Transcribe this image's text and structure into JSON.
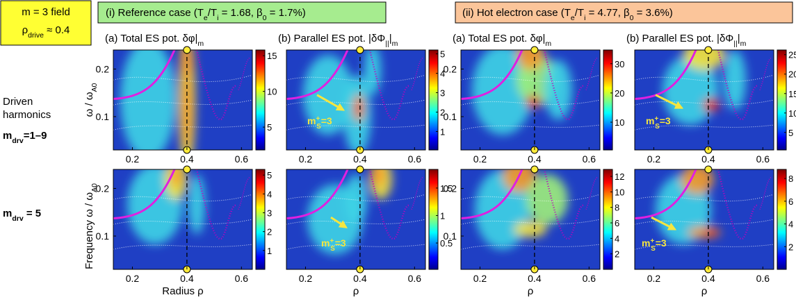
{
  "header": {
    "field_box": [
      [
        "m = 3 field"
      ],
      [
        "ρ",
        "drive",
        " ≈ 0.4"
      ]
    ],
    "case_ref": [
      "(i) Reference case (T",
      "e",
      "/T",
      "i",
      " = 1.68, β",
      "0",
      " = 1.7%)"
    ],
    "case_hot": [
      "(ii) Hot electron case (T",
      "e",
      "/T",
      "i",
      " = 4.77, β",
      "0",
      " = 3.6%)"
    ],
    "driven": [
      "Driven",
      "harmonics"
    ],
    "row_labels": [
      [
        "m",
        "drv",
        "=1–9"
      ],
      [
        "m",
        "drv",
        " = 5"
      ]
    ]
  },
  "chart_data": [
    {
      "type": "heatmap",
      "title": [
        "(a) Total ES pot. δφ|",
        "m"
      ],
      "ylabel": [
        "ω / ω",
        "A0"
      ],
      "xlim": [
        0.13,
        0.64
      ],
      "ylim": [
        0.03,
        0.24
      ],
      "xticks": [
        0.2,
        0.4,
        0.6
      ],
      "yticks": [
        0.1,
        0.2
      ],
      "colorbar": {
        "clim": [
          1.8,
          15.8
        ],
        "ticks": [
          5,
          10,
          15
        ]
      }
    },
    {
      "type": "heatmap",
      "title": [
        "(b) Parallel ES pot. |δΦ",
        "||",
        "|",
        "m"
      ],
      "xlim": [
        0.13,
        0.64
      ],
      "ylim": [
        0.03,
        0.24
      ],
      "xticks": [
        0.2,
        0.4,
        0.6
      ],
      "colorbar": {
        "clim": [
          0.05,
          5.2
        ],
        "ticks": [
          1,
          2,
          3,
          4,
          5
        ]
      },
      "annotation": {
        "base": "m",
        "sup": "+",
        "sub": "S",
        "rest": "=3"
      }
    },
    {
      "type": "heatmap",
      "title": [
        "(a) Total ES pot. δφ|",
        "m"
      ],
      "xlim": [
        0.13,
        0.64
      ],
      "ylim": [
        0.03,
        0.24
      ],
      "xticks": [
        0.2,
        0.4,
        0.6
      ],
      "yticks": [
        0.1,
        0.2
      ],
      "colorbar": {
        "clim": [
          0.5,
          34.7
        ],
        "ticks": [
          10,
          20,
          30
        ]
      }
    },
    {
      "type": "heatmap",
      "title": [
        "(b) Parallel ES pot. |δΦ",
        "||",
        "|",
        "m"
      ],
      "xlim": [
        0.13,
        0.64
      ],
      "ylim": [
        0.03,
        0.24
      ],
      "xticks": [
        0.2,
        0.4,
        0.6
      ],
      "colorbar": {
        "clim": [
          0.5,
          26.2
        ],
        "ticks": [
          5,
          10,
          15,
          20,
          25
        ]
      },
      "annotation": {
        "base": "m",
        "sup": "+",
        "sub": "S",
        "rest": "=3"
      }
    },
    {
      "type": "heatmap",
      "ylabel": [
        "Frequency ω / ω",
        "A0"
      ],
      "xlabel": "Radius ρ",
      "xlim": [
        0.13,
        0.64
      ],
      "ylim": [
        0.03,
        0.24
      ],
      "xticks": [
        0.2,
        0.4,
        0.6
      ],
      "yticks": [
        0.1,
        0.2
      ],
      "colorbar": {
        "clim": [
          0,
          5.3
        ],
        "ticks": [
          1,
          2,
          3,
          4,
          5
        ]
      }
    },
    {
      "type": "heatmap",
      "xlabel": "ρ",
      "xlim": [
        0.13,
        0.64
      ],
      "ylim": [
        0.03,
        0.24
      ],
      "xticks": [
        0.2,
        0.4,
        0.6
      ],
      "colorbar": {
        "clim": [
          0.02,
          1.84
        ],
        "ticks": [
          0.5,
          1,
          1.5
        ]
      },
      "annotation": {
        "base": "m",
        "sup": "+",
        "sub": "S",
        "rest": "=3"
      }
    },
    {
      "type": "heatmap",
      "xlabel": "ρ",
      "xlim": [
        0.13,
        0.64
      ],
      "ylim": [
        0.03,
        0.24
      ],
      "xticks": [
        0.2,
        0.4,
        0.6
      ],
      "yticks": [
        0.1,
        0.2
      ],
      "colorbar": {
        "clim": [
          0,
          12.9
        ],
        "ticks": [
          2,
          4,
          6,
          8,
          10,
          12
        ]
      }
    },
    {
      "type": "heatmap",
      "xlabel": "ρ",
      "xlim": [
        0.13,
        0.64
      ],
      "ylim": [
        0.03,
        0.24
      ],
      "xticks": [
        0.2,
        0.4,
        0.6
      ],
      "colorbar": {
        "clim": [
          0,
          8.8
        ],
        "ticks": [
          2,
          4,
          6,
          8
        ]
      },
      "annotation": {
        "base": "m",
        "sup": "+",
        "sub": "S",
        "rest": "=3"
      }
    }
  ]
}
